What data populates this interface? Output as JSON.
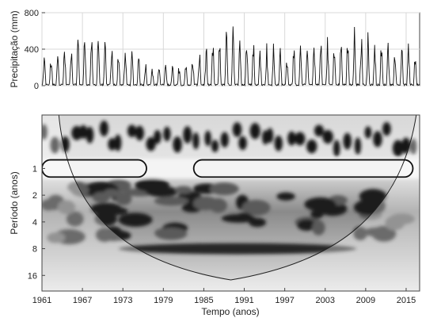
{
  "chart_data": [
    {
      "type": "line",
      "ylabel": "Precipitação (mm)",
      "xlabel": "",
      "ylim": [
        0,
        800
      ],
      "yticks": [
        "0",
        "400",
        "800"
      ],
      "xlim": [
        1961,
        2017
      ],
      "grid": true,
      "series": [
        {
          "x_start": 1961,
          "x_end": 2017,
          "seasonal_peak_approx": [
            300,
            310,
            380,
            420,
            480,
            520,
            560,
            600,
            540,
            470,
            430,
            400,
            360,
            320,
            300,
            260,
            220,
            200,
            200,
            210,
            230,
            280,
            320,
            360,
            420,
            480,
            520,
            560,
            580,
            560,
            520,
            480,
            440,
            420,
            400,
            380,
            360,
            380,
            400,
            420,
            440,
            460,
            480,
            500,
            520,
            540,
            560,
            540,
            520,
            500,
            480,
            460,
            440,
            420,
            400,
            380,
            360
          ]
        }
      ]
    },
    {
      "type": "heatmap",
      "xlabel": "Tempo (anos)",
      "ylabel": "Período (anos)",
      "xticks": [
        "1961",
        "1967",
        "1973",
        "1979",
        "1985",
        "1991",
        "1997",
        "2003",
        "2009",
        "2015"
      ],
      "yticks": [
        "1",
        "2",
        "4",
        "8",
        "16"
      ],
      "xlim": [
        1961,
        2017
      ],
      "ylim_period_years": [
        0.25,
        24
      ],
      "y_scale": "log2",
      "significance_contours": [
        {
          "from": 1961,
          "to": 1976.5,
          "period_low": 0.8,
          "period_high": 1.25
        },
        {
          "from": 1983.5,
          "to": 2016,
          "period_low": 0.8,
          "period_high": 1.25
        }
      ],
      "cone_of_influence": {
        "minimum_at": 1989,
        "max_period": 18
      }
    }
  ]
}
